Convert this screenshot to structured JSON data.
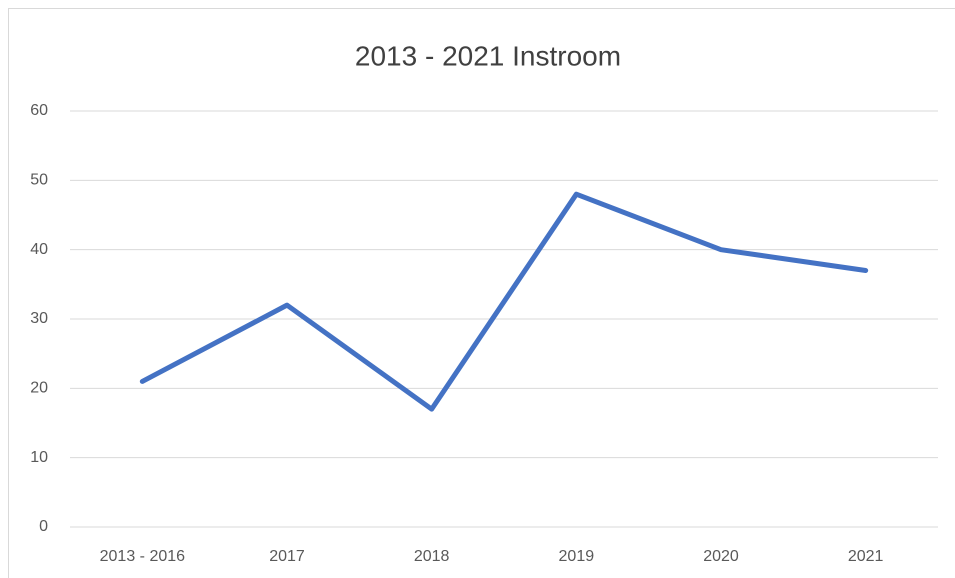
{
  "chart_data": {
    "type": "line",
    "title": "2013 - 2021 Instroom",
    "categories": [
      "2013 - 2016",
      "2017",
      "2018",
      "2019",
      "2020",
      "2021"
    ],
    "values": [
      21,
      32,
      17,
      48,
      40,
      37
    ],
    "color": "#4472c4",
    "ylim": [
      0,
      60
    ],
    "yticks": [
      0,
      10,
      20,
      30,
      40,
      50,
      60
    ],
    "grid": true
  }
}
